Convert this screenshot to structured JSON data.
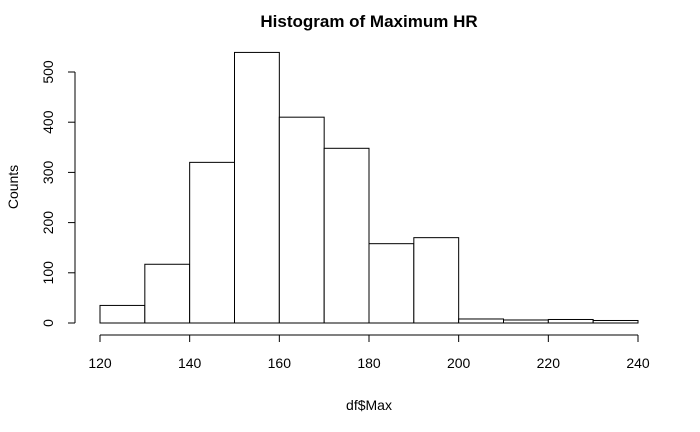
{
  "chart_data": {
    "type": "bar",
    "title": "Histogram of Maximum HR",
    "xlabel": "df$Max",
    "ylabel": "Counts",
    "bins": [
      {
        "start": 120,
        "end": 130,
        "count": 35
      },
      {
        "start": 130,
        "end": 140,
        "count": 117
      },
      {
        "start": 140,
        "end": 150,
        "count": 320
      },
      {
        "start": 150,
        "end": 160,
        "count": 539
      },
      {
        "start": 160,
        "end": 170,
        "count": 410
      },
      {
        "start": 170,
        "end": 180,
        "count": 348
      },
      {
        "start": 180,
        "end": 190,
        "count": 158
      },
      {
        "start": 190,
        "end": 200,
        "count": 170
      },
      {
        "start": 200,
        "end": 210,
        "count": 8
      },
      {
        "start": 210,
        "end": 220,
        "count": 6
      },
      {
        "start": 220,
        "end": 230,
        "count": 7
      },
      {
        "start": 230,
        "end": 240,
        "count": 5
      }
    ],
    "xlim": [
      120,
      240
    ],
    "ylim": [
      0,
      540
    ],
    "x_ticks": [
      "120",
      "140",
      "160",
      "180",
      "200",
      "220",
      "240"
    ],
    "y_ticks": [
      "0",
      "100",
      "200",
      "300",
      "400",
      "500"
    ],
    "grid": false,
    "colors": {
      "bar_fill": "#ffffff",
      "bar_stroke": "#000000"
    }
  }
}
